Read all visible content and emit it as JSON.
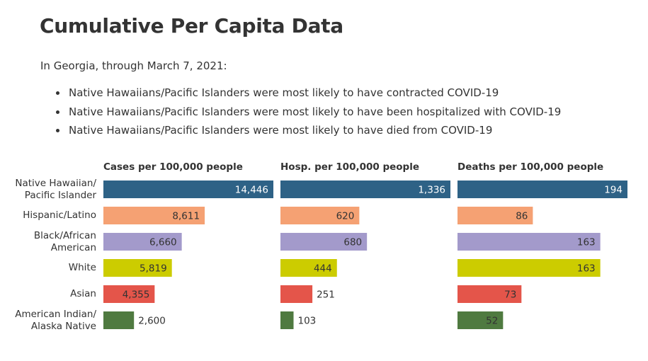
{
  "title": "Cumulative Per Capita Data",
  "intro": "In Georgia, through March 7, 2021:",
  "bullets": [
    "Native Hawaiians/Pacific Islanders were most likely to have contracted COVID-19",
    "Native Hawaiians/Pacific Islanders were most likely to have been hospitalized with COVID-19",
    "Native Hawaiians/Pacific Islanders were most likely to have died from COVID-19"
  ],
  "colors": {
    "Native Hawaiian/Pacific Islander": "#2e6286",
    "Hispanic/Latino": "#f5a173",
    "Black/African American": "#a39acb",
    "White": "#cccc00",
    "Asian": "#e4554a",
    "American Indian/Alaska Native": "#4f7a40",
    "inside_label_text": "#ffffff",
    "inside_label_text_dark": "#333333",
    "outside_label_text": "#333333"
  },
  "chart_data": [
    {
      "type": "bar",
      "orientation": "horizontal",
      "title": "Cases per 100,000 people",
      "categories": [
        [
          "Native Hawaiian/",
          "Pacific Islander"
        ],
        [
          "Hispanic/Latino"
        ],
        [
          "Black/African",
          "American"
        ],
        [
          "White"
        ],
        [
          "Asian"
        ],
        [
          "American Indian/",
          "Alaska Native"
        ]
      ],
      "values": [
        14446,
        8611,
        6660,
        5819,
        4355,
        2600
      ],
      "value_labels": [
        "14,446",
        "8,611",
        "6,660",
        "5,819",
        "4,355",
        "2,600"
      ],
      "xlim": [
        0,
        14446
      ]
    },
    {
      "type": "bar",
      "orientation": "horizontal",
      "title": "Hosp. per 100,000 people",
      "categories": [
        [
          "Native Hawaiian/",
          "Pacific Islander"
        ],
        [
          "Hispanic/Latino"
        ],
        [
          "Black/African",
          "American"
        ],
        [
          "White"
        ],
        [
          "Asian"
        ],
        [
          "American Indian/",
          "Alaska Native"
        ]
      ],
      "values": [
        1336,
        620,
        680,
        444,
        251,
        103
      ],
      "value_labels": [
        "1,336",
        "620",
        "680",
        "444",
        "251",
        "103"
      ],
      "xlim": [
        0,
        1336
      ]
    },
    {
      "type": "bar",
      "orientation": "horizontal",
      "title": "Deaths per 100,000 people",
      "categories": [
        [
          "Native Hawaiian/",
          "Pacific Islander"
        ],
        [
          "Hispanic/Latino"
        ],
        [
          "Black/African",
          "American"
        ],
        [
          "White"
        ],
        [
          "Asian"
        ],
        [
          "American Indian/",
          "Alaska Native"
        ]
      ],
      "values": [
        194,
        86,
        163,
        163,
        73,
        52
      ],
      "value_labels": [
        "194",
        "86",
        "163",
        "163",
        "73",
        "52"
      ],
      "xlim": [
        0,
        194
      ]
    }
  ]
}
